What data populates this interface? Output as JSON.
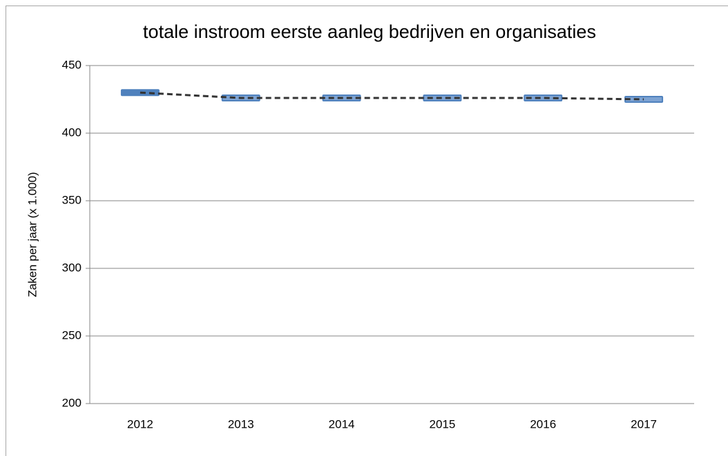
{
  "chart_data": {
    "type": "line",
    "title": "totale instroom eerste aanleg bedrijven en organisaties",
    "y_label": "Zaken per jaar (x 1.000)",
    "categories": [
      "2012",
      "2013",
      "2014",
      "2015",
      "2016",
      "2017"
    ],
    "values": [
      430,
      426,
      426,
      426,
      426,
      425
    ],
    "color": "#4f81bd",
    "line_color": "#333333",
    "ylim": [
      200,
      450
    ],
    "yticks": [
      200,
      250,
      300,
      350,
      400,
      450
    ],
    "grid": true
  }
}
